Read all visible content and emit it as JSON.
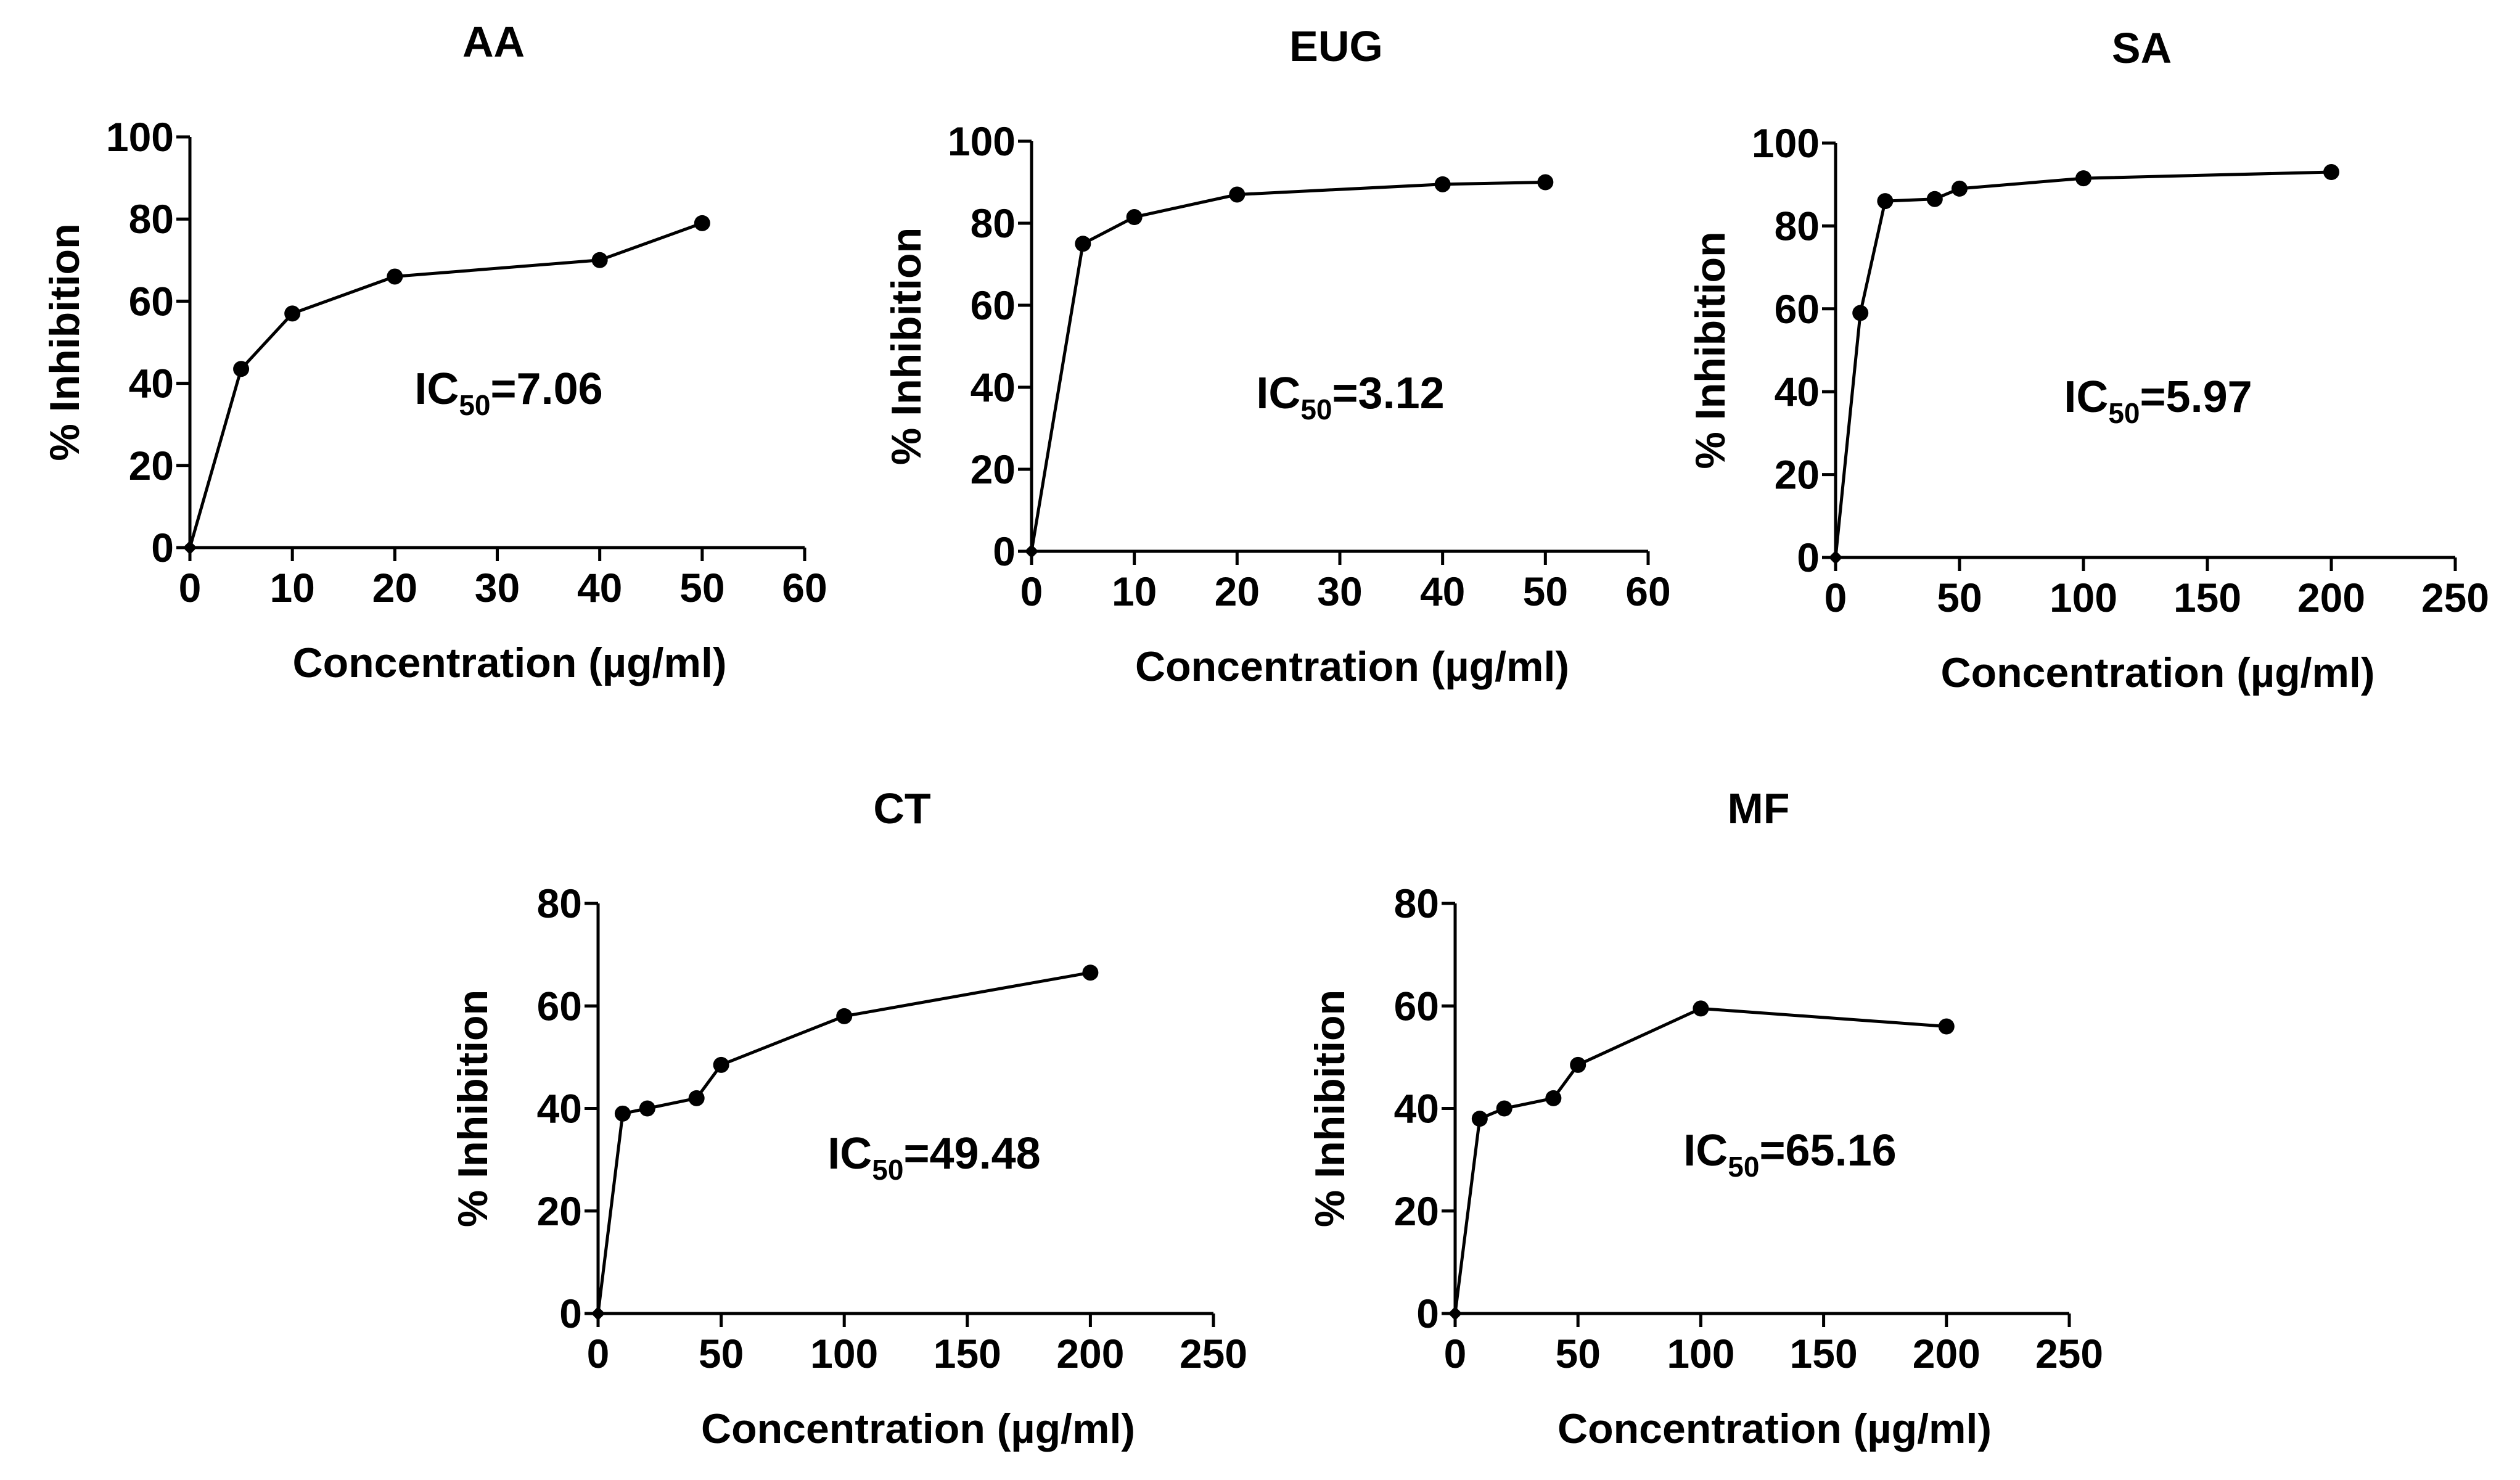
{
  "chart_data": [
    {
      "type": "line",
      "title": "AA",
      "xlabel": "Concentration (µg/ml)",
      "ylabel": "% Inhibition",
      "xlim": [
        0,
        60
      ],
      "ylim": [
        0,
        100
      ],
      "xticks": [
        0,
        10,
        20,
        30,
        40,
        50,
        60
      ],
      "yticks": [
        0,
        20,
        40,
        60,
        80,
        100
      ],
      "x": [
        0,
        5,
        10,
        20,
        40,
        50
      ],
      "y": [
        0,
        43.5,
        57,
        66,
        70,
        79
      ],
      "annotation": {
        "prefix": "IC",
        "subscript": "50",
        "value": "=7.06"
      }
    },
    {
      "type": "line",
      "title": "EUG",
      "xlabel": "Concentration (µg/ml)",
      "ylabel": "% Inhibition",
      "xlim": [
        0,
        60
      ],
      "ylim": [
        0,
        100
      ],
      "xticks": [
        0,
        10,
        20,
        30,
        40,
        50,
        60
      ],
      "yticks": [
        0,
        20,
        40,
        60,
        80,
        100
      ],
      "x": [
        0,
        5,
        10,
        20,
        40,
        50
      ],
      "y": [
        0,
        75,
        81.5,
        87,
        89.5,
        90
      ],
      "annotation": {
        "prefix": "IC",
        "subscript": "50",
        "value": "=3.12"
      }
    },
    {
      "type": "line",
      "title": "SA",
      "xlabel": "Concentration (µg/ml)",
      "ylabel": "% Inhibition",
      "xlim": [
        0,
        250
      ],
      "ylim": [
        0,
        100
      ],
      "xticks": [
        0,
        50,
        100,
        150,
        200,
        250
      ],
      "yticks": [
        0,
        20,
        40,
        60,
        80,
        100
      ],
      "x": [
        0,
        10,
        20,
        40,
        50,
        100,
        200
      ],
      "y": [
        0,
        59,
        86,
        86.5,
        89,
        91.5,
        93
      ],
      "annotation": {
        "prefix": "IC",
        "subscript": "50",
        "value": "=5.97"
      }
    },
    {
      "type": "line",
      "title": "CT",
      "xlabel": "Concentration (µg/ml)",
      "ylabel": "% Inhibition",
      "xlim": [
        0,
        250
      ],
      "ylim": [
        0,
        80
      ],
      "xticks": [
        0,
        50,
        100,
        150,
        200,
        250
      ],
      "yticks": [
        0,
        20,
        40,
        60,
        80
      ],
      "x": [
        0,
        10,
        20,
        40,
        50,
        100,
        200
      ],
      "y": [
        0,
        39,
        40,
        42,
        48.5,
        58,
        66.5
      ],
      "annotation": {
        "prefix": "IC",
        "subscript": "50",
        "value": "=49.48"
      }
    },
    {
      "type": "line",
      "title": "MF",
      "xlabel": "Concentration (µg/ml)",
      "ylabel": "% Inhibition",
      "xlim": [
        0,
        250
      ],
      "ylim": [
        0,
        80
      ],
      "xticks": [
        0,
        50,
        100,
        150,
        200,
        250
      ],
      "yticks": [
        0,
        20,
        40,
        60,
        80
      ],
      "x": [
        0,
        10,
        20,
        40,
        50,
        100,
        200
      ],
      "y": [
        0,
        38,
        40,
        42,
        48.5,
        59.5,
        56
      ],
      "annotation": {
        "prefix": "IC",
        "subscript": "50",
        "value": "=65.16"
      }
    }
  ]
}
